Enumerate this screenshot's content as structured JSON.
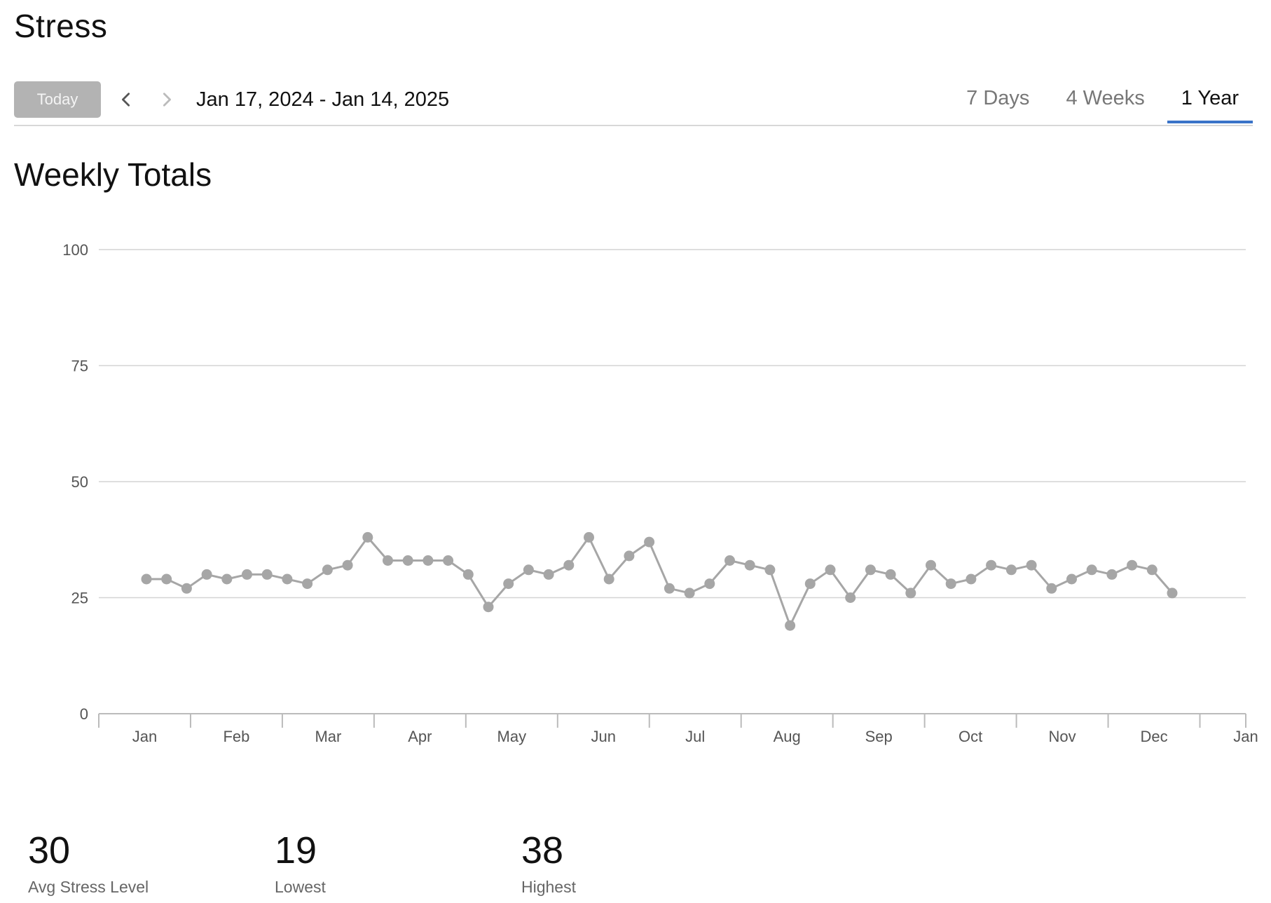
{
  "header": {
    "title": "Stress"
  },
  "toolbar": {
    "today_label": "Today",
    "date_range": "Jan 17, 2024 - Jan 14, 2025",
    "tabs": [
      {
        "label": "7 Days",
        "active": false
      },
      {
        "label": "4 Weeks",
        "active": false
      },
      {
        "label": "1 Year",
        "active": true
      }
    ],
    "accent_color": "#3a73c8"
  },
  "section": {
    "title": "Weekly Totals"
  },
  "chart_data": {
    "type": "line",
    "title": "",
    "xlabel": "",
    "ylabel": "",
    "ylim": [
      0,
      100
    ],
    "yticks": [
      0,
      25,
      50,
      75,
      100
    ],
    "x_month_labels": [
      "Jan",
      "Feb",
      "Mar",
      "Apr",
      "May",
      "Jun",
      "Jul",
      "Aug",
      "Sep",
      "Oct",
      "Nov",
      "Dec",
      "Jan"
    ],
    "grid": true,
    "line_color": "#a6a6a6",
    "series": [
      {
        "values": [
          29,
          29,
          27,
          30,
          29,
          30,
          30,
          29,
          28,
          31,
          32,
          38,
          33,
          33,
          33,
          33,
          30,
          23,
          28,
          31,
          30,
          32,
          38,
          29,
          34,
          37,
          27,
          26,
          28,
          33,
          32,
          31,
          19,
          28,
          31,
          25,
          31,
          30,
          26,
          32,
          28,
          29,
          32,
          31,
          32,
          27,
          29,
          31,
          30,
          32,
          31,
          26
        ]
      }
    ]
  },
  "stats": [
    {
      "value": "30",
      "label": "Avg Stress Level"
    },
    {
      "value": "19",
      "label": "Lowest"
    },
    {
      "value": "38",
      "label": "Highest"
    }
  ]
}
